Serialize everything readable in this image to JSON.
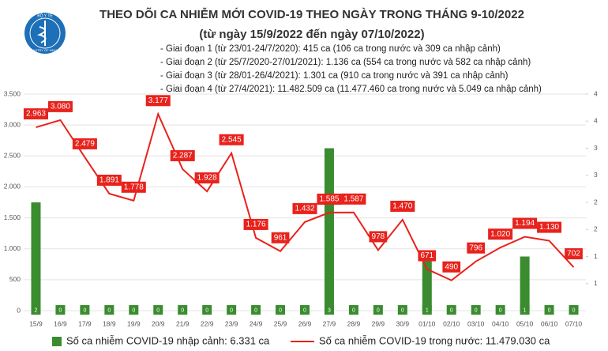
{
  "logo_text": [
    "BỘ Y TẾ",
    "MINISTRY OF HEALTH"
  ],
  "chart_data": {
    "type": "combo",
    "title": "THEO DÕI CA NHIỄM MỚI COVID-19 THEO NGÀY TRONG THÁNG 9-10/2022",
    "subtitle": "(từ ngày 15/9/2022 đến ngày 07/10/2022)",
    "annotations": [
      "- Giai đoạn 1 (từ 23/01-24/7/2020): 415 ca (106 ca trong nước và 309 ca nhập cảnh)",
      "- Giai đoạn 2 (từ 25/7/2020-27/01/2021): 1.136 ca (554 ca trong nước và 582 ca nhập cảnh)",
      "- Giai đoạn 3 (từ 28/01-26/4/2021): 1.301 ca (910 ca trong nước và 391 ca nhập cảnh)",
      "- Giai đoạn 4 (từ 27/4/2021): 11.482.509 ca (11.477.460 ca trong nước và 5.049 ca nhập cảnh)"
    ],
    "categories": [
      "15/9",
      "16/9",
      "17/9",
      "18/9",
      "19/9",
      "20/9",
      "21/9",
      "22/9",
      "23/9",
      "24/9",
      "25/9",
      "26/9",
      "27/9",
      "28/9",
      "29/9",
      "30/9",
      "01/10",
      "02/10",
      "03/10",
      "04/10",
      "05/10",
      "06/10",
      "07/10"
    ],
    "series": [
      {
        "name": "Số ca nhiễm COVID-19 nhập cảnh: 6.331 ca",
        "type": "bar",
        "axis": "y2",
        "color": "#3a8c2f",
        "values": [
          2,
          0,
          0,
          0,
          0,
          0,
          0,
          0,
          0,
          0,
          0,
          0,
          3,
          0,
          0,
          0,
          1,
          0,
          0,
          0,
          1,
          0,
          0
        ]
      },
      {
        "name": "Số ca nhiễm COVID-19 trong nước: 11.479.030 ca",
        "type": "line",
        "color": "#e8221c",
        "values": [
          2963,
          3080,
          2479,
          1891,
          1778,
          3177,
          2287,
          1928,
          2545,
          1176,
          961,
          1432,
          1585,
          1587,
          978,
          1470,
          671,
          490,
          796,
          1020,
          1194,
          1130,
          702
        ],
        "value_labels": [
          "2.963",
          "3.080",
          "2.479",
          "1.891",
          "1.778",
          "3.177",
          "2.287",
          "1.928",
          "2.545",
          "1.176",
          "961",
          "1.432",
          "1.585",
          "1.587",
          "978",
          "1.470",
          "671",
          "490",
          "796",
          "1.020",
          "1.194",
          "1.130",
          "702"
        ]
      }
    ],
    "ylim": [
      0,
      3500
    ],
    "yticks": [
      0,
      500,
      {
        "value": 1000,
        "label": "1.000"
      },
      {
        "value": 1500,
        "label": "1.500"
      },
      {
        "value": 2000,
        "label": "2.000"
      },
      {
        "value": 2500,
        "label": "2.500"
      },
      {
        "value": 3000,
        "label": "3.000"
      },
      {
        "value": 3500,
        "label": "3.500"
      }
    ],
    "y2lim": [
      0,
      4
    ],
    "y2ticks": [
      {
        "value": 0.5,
        "label": "1"
      },
      1,
      {
        "value": 1.5,
        "label": "2"
      },
      2,
      {
        "value": 2.5,
        "label": "3"
      },
      3,
      {
        "value": 3.5,
        "label": "4"
      },
      4
    ],
    "grid": true
  }
}
